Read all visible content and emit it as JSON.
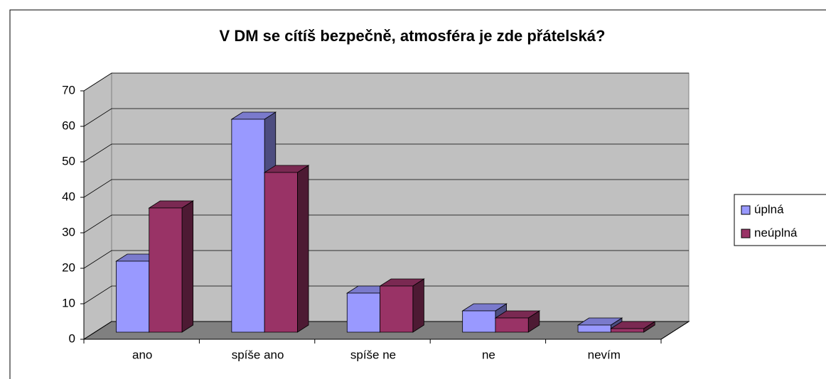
{
  "chart_data": {
    "type": "bar3d",
    "title": "V DM se cítíš bezpečně, atmosféra je zde přátelská?",
    "categories": [
      "ano",
      "spíše ano",
      "spíše ne",
      "ne",
      "nevím"
    ],
    "series": [
      {
        "name": "úplná",
        "color": "#9999ff",
        "values": [
          20,
          60,
          11,
          6,
          2
        ]
      },
      {
        "name": "neúplná",
        "color": "#993366",
        "values": [
          35,
          45,
          13,
          4,
          1
        ]
      }
    ],
    "ylim": [
      0,
      70
    ],
    "yticks": [
      0,
      10,
      20,
      30,
      40,
      50,
      60,
      70
    ],
    "grid": true,
    "legend": "right"
  }
}
